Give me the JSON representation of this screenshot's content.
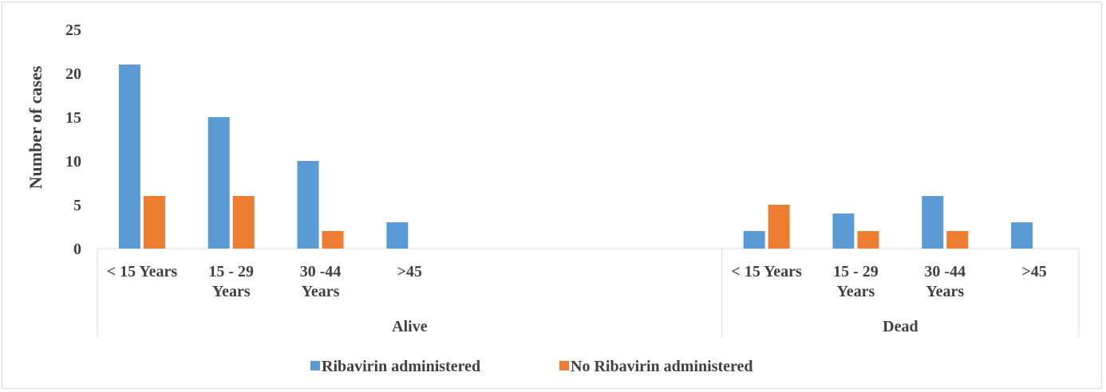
{
  "chart_data": {
    "type": "bar",
    "title": "",
    "xlabel": "",
    "ylabel": "Number of cases",
    "ylim": [
      0,
      25
    ],
    "yticks": [
      0,
      5,
      10,
      15,
      20,
      25
    ],
    "grid": false,
    "legend_position": "bottom",
    "groups": [
      {
        "label": "Alive",
        "categories": [
          [
            "< 15 Years"
          ],
          [
            "15 - 29",
            "Years"
          ],
          [
            "30 -44",
            "Years"
          ],
          [
            ">45"
          ]
        ]
      },
      {
        "label": "Dead",
        "categories": [
          [
            "< 15 Years"
          ],
          [
            "15 - 29",
            "Years"
          ],
          [
            "30 -44",
            "Years"
          ],
          [
            ">45"
          ]
        ]
      }
    ],
    "series": [
      {
        "name": "Ribavirin administered",
        "color": "#5b9bd5",
        "values": [
          21,
          15,
          10,
          3,
          2,
          4,
          6,
          3
        ]
      },
      {
        "name": "No Ribavirin administered",
        "color": "#ed7d31",
        "values": [
          6,
          6,
          2,
          null,
          5,
          2,
          2,
          null
        ]
      }
    ]
  }
}
